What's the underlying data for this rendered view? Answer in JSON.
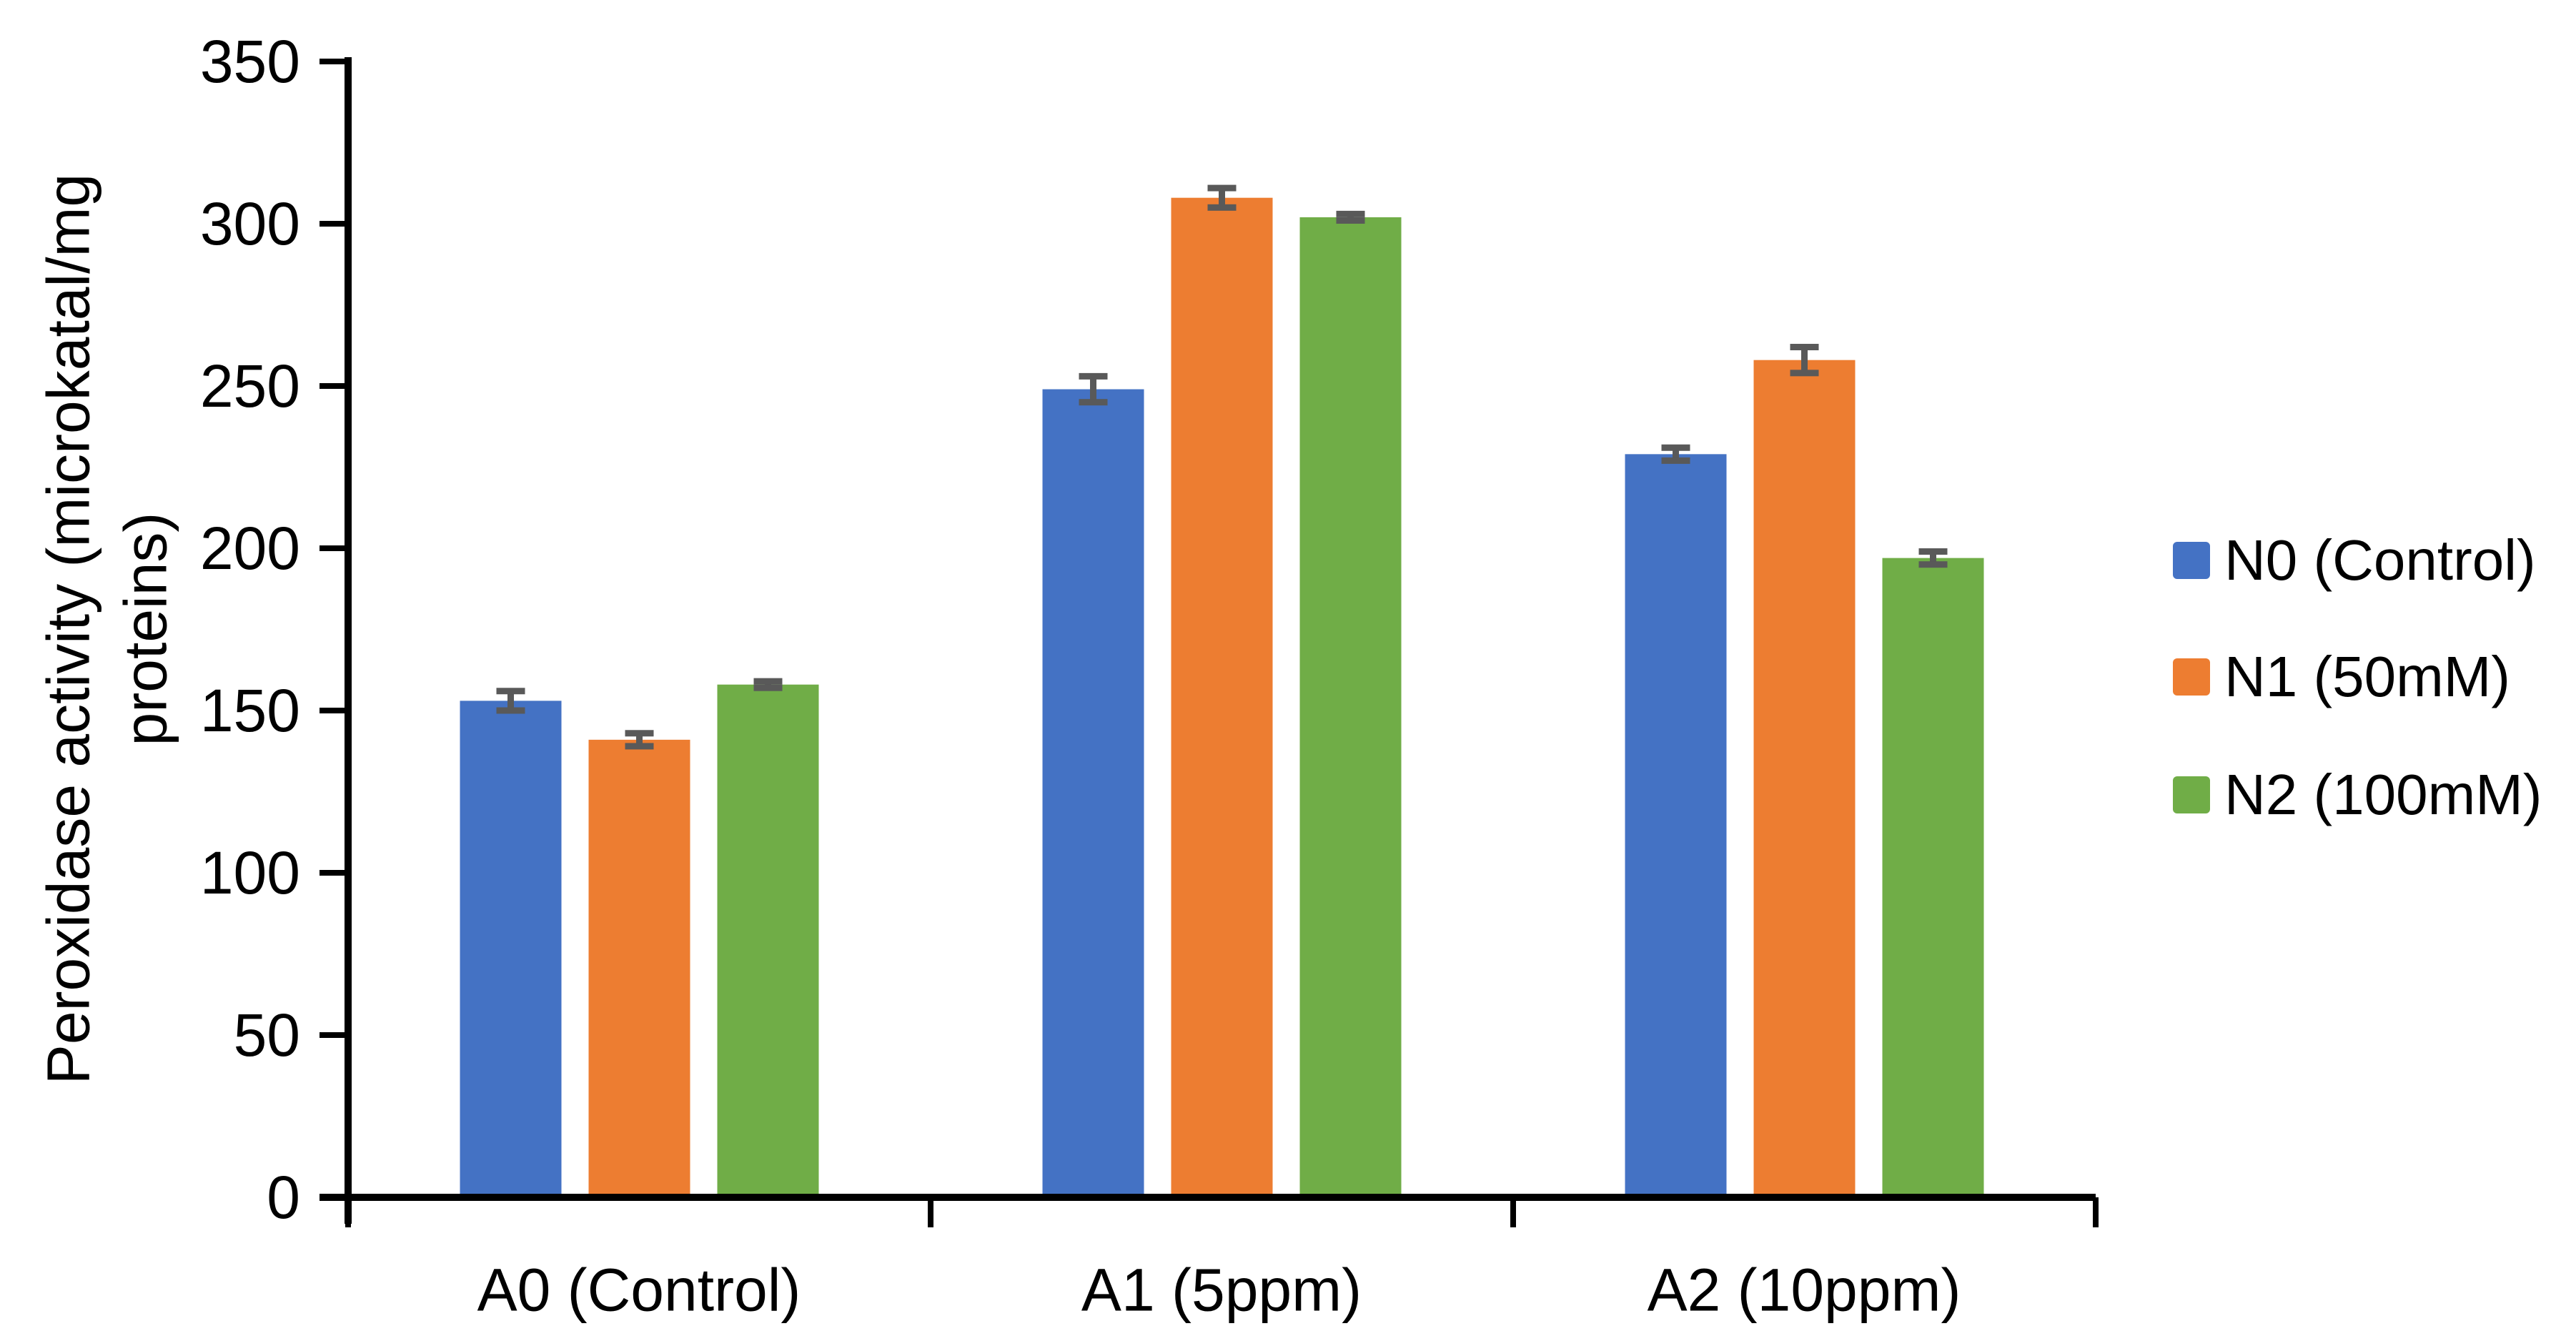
{
  "chart_data": {
    "type": "bar",
    "title": "",
    "xlabel": "",
    "ylabel": "Peroxidase activity (microkatal/mg\nproteins)",
    "categories": [
      "A0 (Control)",
      "A1 (5ppm)",
      "A2 (10ppm)"
    ],
    "series": [
      {
        "name": "N0 (Control)",
        "color": "#4472C4",
        "values": [
          153,
          249,
          229
        ],
        "errors": [
          3,
          4,
          2
        ]
      },
      {
        "name": "N1 (50mM)",
        "color": "#ED7D31",
        "values": [
          141,
          308,
          258
        ],
        "errors": [
          2,
          3,
          4
        ]
      },
      {
        "name": "N2 (100mM)",
        "color": "#70AD47",
        "values": [
          158,
          302,
          197
        ],
        "errors": [
          1,
          1,
          2
        ]
      }
    ],
    "ylim": [
      0,
      350
    ],
    "ytick_values": [
      0,
      50,
      100,
      150,
      200,
      250,
      300,
      350
    ],
    "grid": false,
    "legend_position": "right",
    "error_bar_color": "#595959",
    "axis_color": "#000000",
    "background_color": "#FFFFFF"
  }
}
